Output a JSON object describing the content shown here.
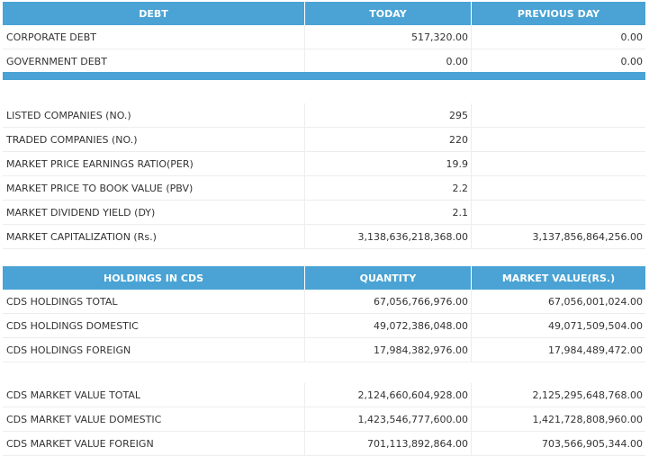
{
  "debt": {
    "headers": {
      "label": "DEBT",
      "today": "TODAY",
      "previous": "PREVIOUS DAY"
    },
    "rows": [
      {
        "label": "CORPORATE DEBT",
        "today": "517,320.00",
        "previous": "0.00"
      },
      {
        "label": "GOVERNMENT DEBT",
        "today": "0.00",
        "previous": "0.00"
      }
    ]
  },
  "market": {
    "rows": [
      {
        "label": "LISTED COMPANIES (NO.)",
        "today": "295",
        "previous": ""
      },
      {
        "label": "TRADED COMPANIES (NO.)",
        "today": "220",
        "previous": ""
      },
      {
        "label": "MARKET PRICE EARNINGS RATIO(PER)",
        "today": "19.9",
        "previous": ""
      },
      {
        "label": "MARKET PRICE TO BOOK VALUE (PBV)",
        "today": "2.2",
        "previous": ""
      },
      {
        "label": "MARKET DIVIDEND YIELD (DY)",
        "today": "2.1",
        "previous": ""
      },
      {
        "label": "MARKET CAPITALIZATION (Rs.)",
        "today": "3,138,636,218,368.00",
        "previous": "3,137,856,864,256.00"
      }
    ]
  },
  "cds": {
    "headers": {
      "label": "HOLDINGS IN CDS",
      "quantity": "QUANTITY",
      "market_value": "MARKET VALUE(RS.)"
    },
    "holdings": [
      {
        "label": "CDS HOLDINGS TOTAL",
        "quantity": "67,056,766,976.00",
        "market_value": "67,056,001,024.00"
      },
      {
        "label": "CDS HOLDINGS DOMESTIC",
        "quantity": "49,072,386,048.00",
        "market_value": "49,071,509,504.00"
      },
      {
        "label": "CDS HOLDINGS FOREIGN",
        "quantity": "17,984,382,976.00",
        "market_value": "17,984,489,472.00"
      }
    ],
    "market_values": [
      {
        "label": "CDS MARKET VALUE TOTAL",
        "quantity": "2,124,660,604,928.00",
        "market_value": "2,125,295,648,768.00"
      },
      {
        "label": "CDS MARKET VALUE DOMESTIC",
        "quantity": "1,423,546,777,600.00",
        "market_value": "1,421,728,808,960.00"
      },
      {
        "label": "CDS MARKET VALUE FOREIGN",
        "quantity": "701,113,892,864.00",
        "market_value": "703,566,905,344.00"
      }
    ]
  },
  "colors": {
    "header_bg": "#4aa3d4",
    "header_text": "#ffffff",
    "body_text": "#333333",
    "row_border": "#ededed"
  }
}
